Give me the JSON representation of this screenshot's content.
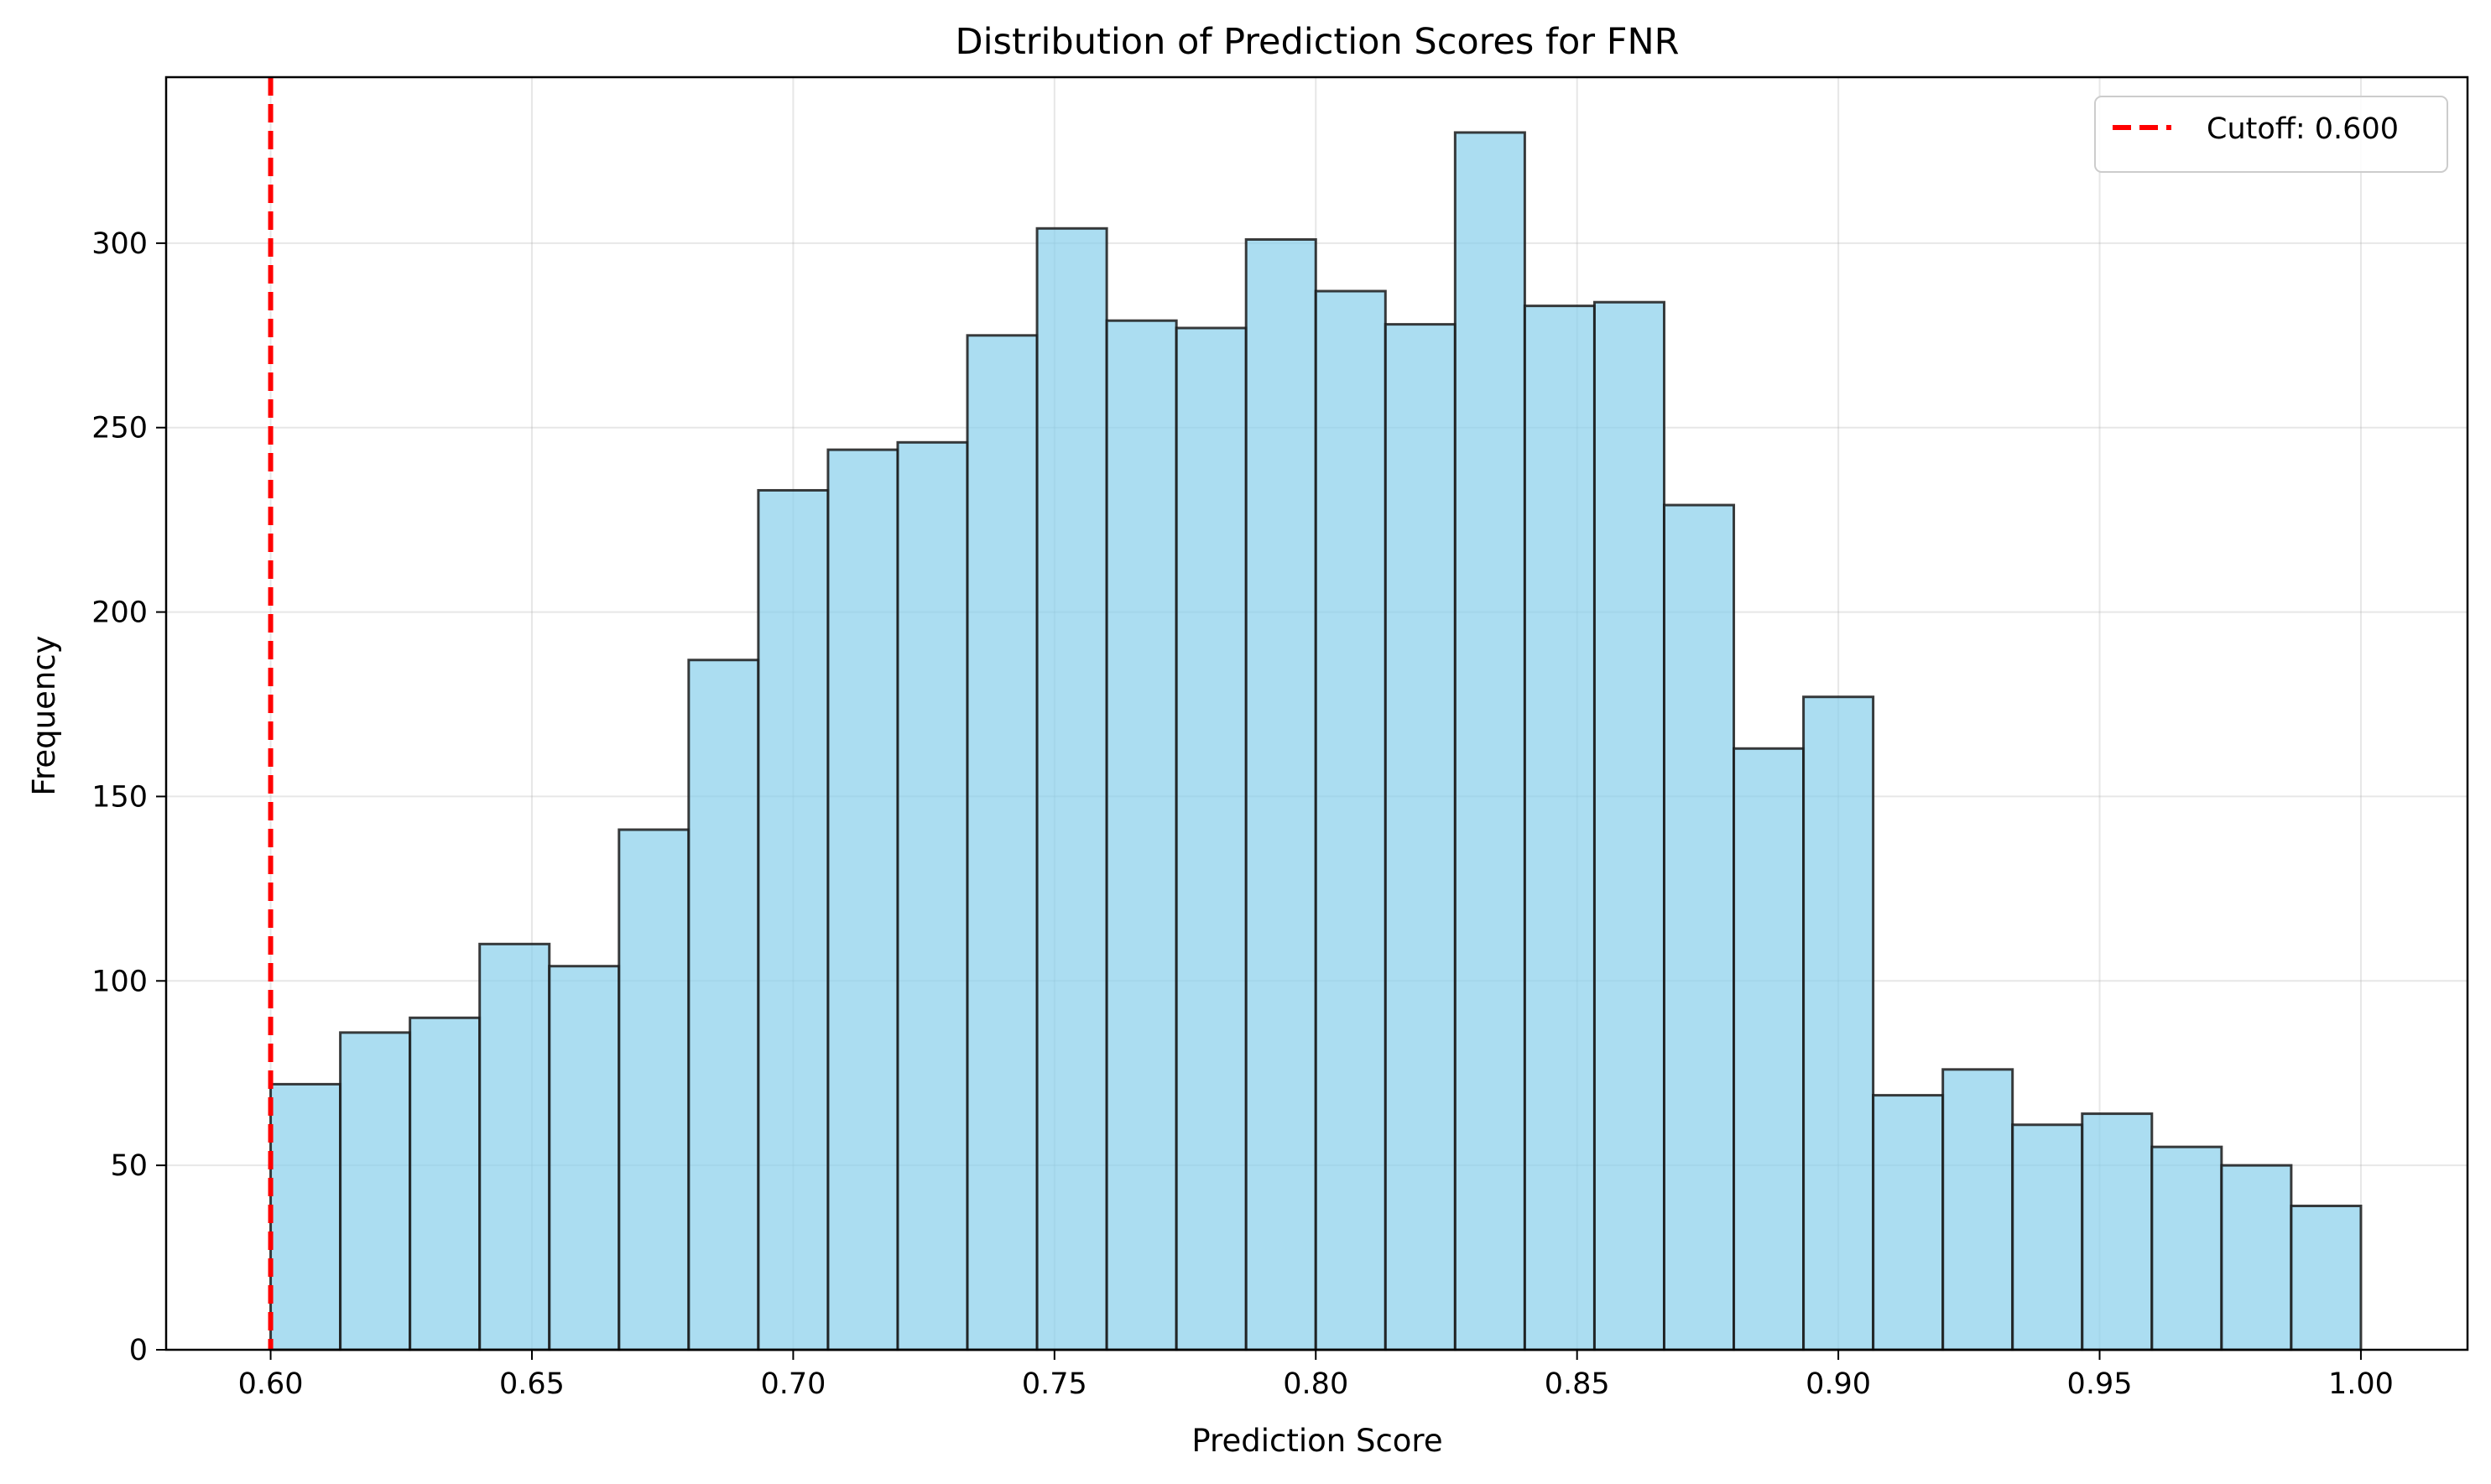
{
  "chart_data": {
    "type": "bar",
    "title": "Distribution of Prediction Scores for FNR",
    "xlabel": "Prediction Score",
    "ylabel": "Frequency",
    "xlim": [
      0.58,
      1.0204
    ],
    "ylim": [
      0,
      345
    ],
    "xticks": [
      "0.60",
      "0.65",
      "0.70",
      "0.75",
      "0.80",
      "0.85",
      "0.90",
      "0.95",
      "1.00"
    ],
    "yticks": [
      "0",
      "50",
      "100",
      "150",
      "200",
      "250",
      "300"
    ],
    "grid": true,
    "bin_start": 0.6,
    "bin_end": 1.0,
    "values": [
      72,
      86,
      90,
      110,
      104,
      141,
      187,
      233,
      244,
      246,
      275,
      304,
      279,
      277,
      301,
      287,
      278,
      330,
      283,
      284,
      229,
      163,
      177,
      69,
      76,
      61,
      64,
      55,
      50,
      39
    ],
    "bar_color": "#87CEEB",
    "bar_edge_color": "#1a1a1a",
    "cutoff": {
      "value": 0.6,
      "label": "Cutoff: 0.600",
      "color": "#ff0000",
      "style": "dashed"
    },
    "legend_position": "top-right"
  }
}
